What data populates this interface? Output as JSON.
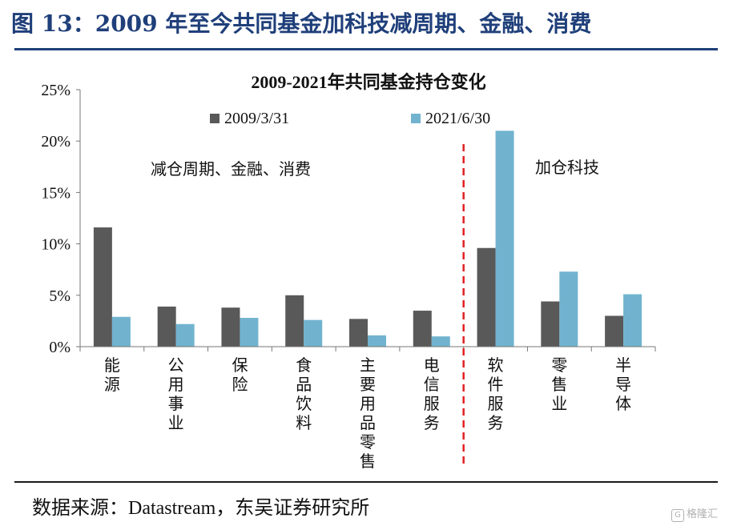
{
  "figure": {
    "title": "图 13：2009 年至今共同基金加科技减周期、金融、消费",
    "source": "数据来源：Datastream，东吴证券研究所",
    "watermark": "格隆汇"
  },
  "chart_data": {
    "type": "bar",
    "title": "2009-2021年共同基金持仓变化",
    "categories": [
      "能源",
      "公用事业",
      "保险",
      "食品饮料",
      "主要用品零售",
      "电信服务",
      "软件服务",
      "零售业",
      "半导体"
    ],
    "series": [
      {
        "name": "2009/3/31",
        "color": "#595959",
        "values": [
          11.6,
          3.9,
          3.8,
          5.0,
          2.7,
          3.5,
          9.6,
          4.4,
          3.0
        ]
      },
      {
        "name": "2021/6/30",
        "color": "#71b3cf",
        "values": [
          2.9,
          2.2,
          2.8,
          2.6,
          1.1,
          1.0,
          21.0,
          7.3,
          5.1
        ]
      }
    ],
    "ylim": [
      0,
      25
    ],
    "yticks": [
      "0%",
      "5%",
      "10%",
      "15%",
      "20%",
      "25%"
    ],
    "ytick_values": [
      0,
      5,
      10,
      15,
      20,
      25
    ],
    "grid": false,
    "legend_position": "top",
    "annotations": {
      "left": "减仓周期、金融、消费",
      "right": "加仓科技"
    },
    "divider_after_category": "电信服务",
    "divider_color": "#e02020"
  }
}
